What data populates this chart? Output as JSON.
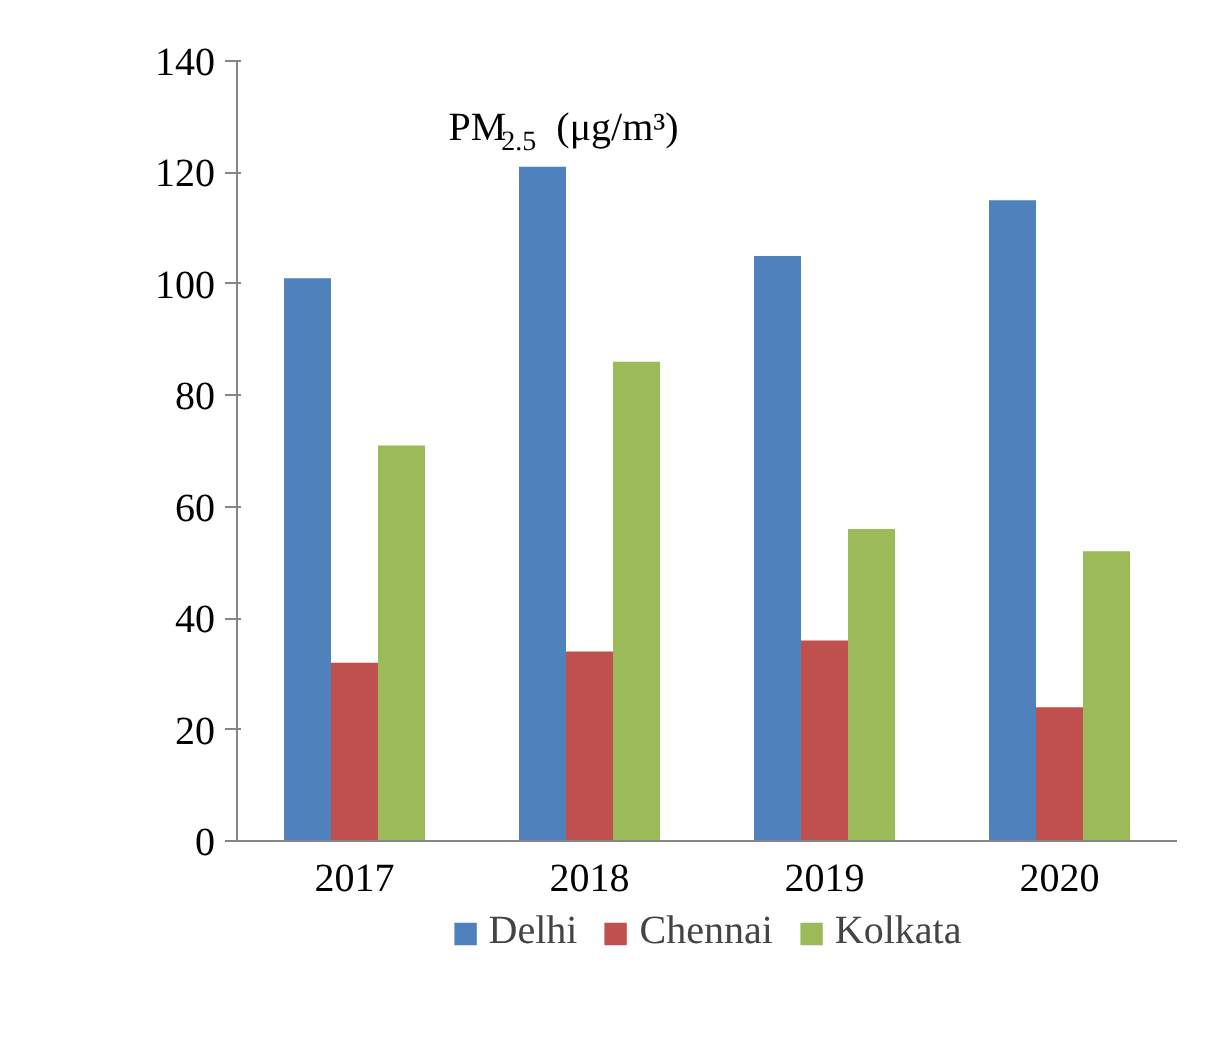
{
  "chart_data": {
    "type": "bar",
    "title": "PM$_{2.5}$(μg/m³)",
    "categories": [
      "2017",
      "2018",
      "2019",
      "2020"
    ],
    "series": [
      {
        "name": "Delhi",
        "color": "#4f81bd",
        "values": [
          101,
          121,
          105,
          115
        ]
      },
      {
        "name": "Chennai",
        "color": "#c0504d",
        "values": [
          32,
          34,
          36,
          24
        ]
      },
      {
        "name": "Kolkata",
        "color": "#9bbb59",
        "values": [
          71,
          86,
          56,
          52
        ]
      }
    ],
    "ylim": [
      0,
      140
    ],
    "yticks": [
      0,
      20,
      40,
      60,
      80,
      100,
      120,
      140
    ],
    "grid": false,
    "legend": "bottom"
  }
}
